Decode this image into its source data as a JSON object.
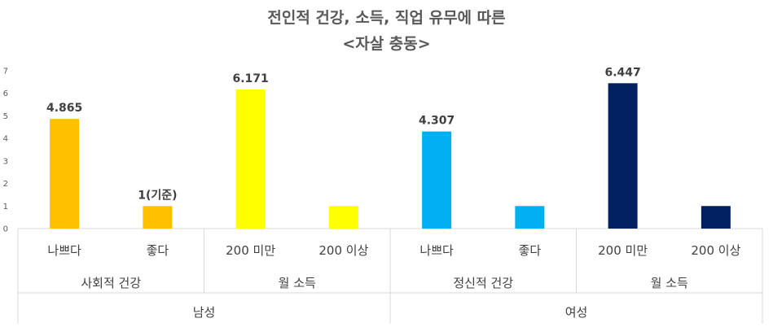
{
  "chart_data": {
    "type": "bar",
    "title_line1": "전인적 건강, 소득, 직업 유무에 따른",
    "title_line2": "<자살 충동>",
    "ylim": [
      0,
      7
    ],
    "yticks": [
      "0",
      "1",
      "2",
      "3",
      "4",
      "5",
      "6",
      "7"
    ],
    "grid": false,
    "legend": "none",
    "categories": [
      "나쁘다",
      "좋다",
      "200 미만",
      "200 이상",
      "나쁘다",
      "좋다",
      "200 미만",
      "200 이상"
    ],
    "values": [
      4.865,
      1,
      6.171,
      1,
      4.307,
      1,
      6.447,
      1
    ],
    "data_labels": [
      "4.865",
      "1(기준)",
      "6.171",
      "",
      "4.307",
      "",
      "6.447",
      ""
    ],
    "colors": [
      "#FFC000",
      "#FFC000",
      "#FFFF00",
      "#FFFF00",
      "#00B0F0",
      "#00B0F0",
      "#002060",
      "#002060"
    ],
    "subgroups": [
      {
        "label": "사회적 건강",
        "span": 2
      },
      {
        "label": "월 소득",
        "span": 2
      },
      {
        "label": "정신적 건강",
        "span": 2
      },
      {
        "label": "월 소득",
        "span": 2
      }
    ],
    "groups": [
      {
        "label": "남성",
        "span": 4
      },
      {
        "label": "여성",
        "span": 4
      }
    ]
  }
}
